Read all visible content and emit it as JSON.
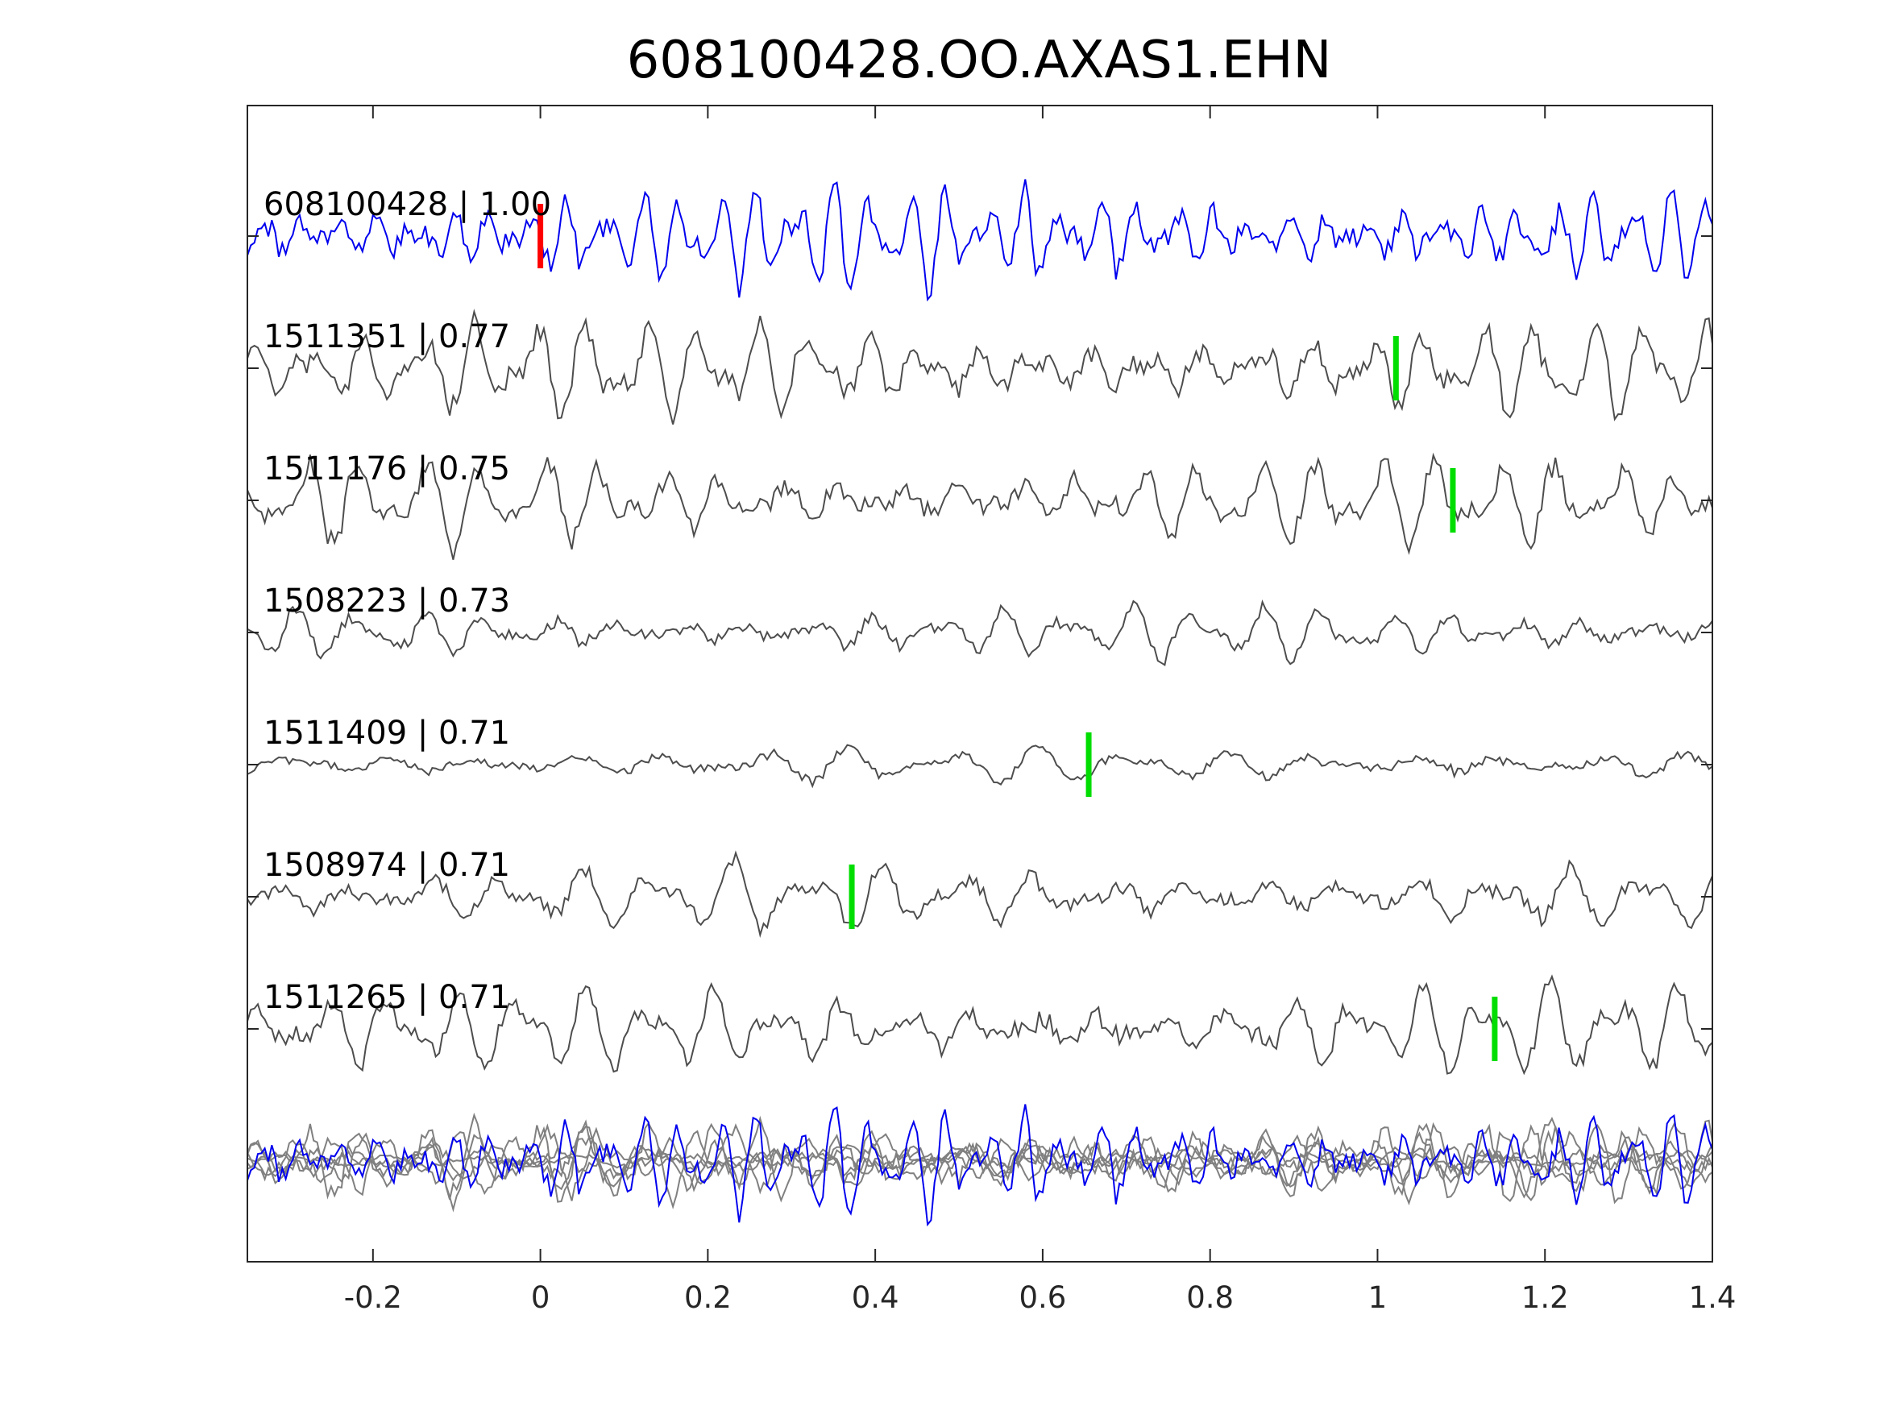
{
  "chart_data": {
    "type": "line",
    "title": "608100428.OO.AXAS1.EHN",
    "xlabel": "",
    "ylabel": "",
    "xlim": [
      -0.35,
      1.4
    ],
    "x_ticks": [
      -0.2,
      0,
      0.2,
      0.4,
      0.6,
      0.8,
      1,
      1.2,
      1.4
    ],
    "x_tick_labels": [
      "-0.2",
      "0",
      "0.2",
      "0.4",
      "0.6",
      "0.8",
      "1",
      "1.2",
      "1.4"
    ],
    "grid": false,
    "colors": {
      "master": "#0000ee",
      "template": "#4d4d4d",
      "stack_template": "#808080",
      "master_pick": "#ff0000",
      "template_pick": "#00dd00",
      "axes": "#262626"
    },
    "series": [
      {
        "name": "608100428",
        "cc_label": "1.00",
        "color": "#0000ee",
        "pick": 0.0,
        "pick_color": "#ff0000",
        "amp": 0.55,
        "f1": 22,
        "f2": 31,
        "seed": 1
      },
      {
        "name": "1511351",
        "cc_label": "0.77",
        "color": "#4d4d4d",
        "pick": 1.022,
        "pick_color": "#00dd00",
        "amp": 0.5,
        "f1": 15,
        "f2": 23,
        "seed": 2
      },
      {
        "name": "1511176",
        "cc_label": "0.75",
        "color": "#4d4d4d",
        "pick": 1.09,
        "pick_color": "#00dd00",
        "amp": 0.45,
        "f1": 14,
        "f2": 21,
        "seed": 3
      },
      {
        "name": "1508223",
        "cc_label": "0.73",
        "color": "#4d4d4d",
        "pick": null,
        "pick_color": "#00dd00",
        "amp": 0.28,
        "f1": 13,
        "f2": 19,
        "seed": 4
      },
      {
        "name": "1511409",
        "cc_label": "0.71",
        "color": "#4d4d4d",
        "pick": 0.655,
        "pick_color": "#00dd00",
        "amp": 0.2,
        "f1": 9,
        "f2": 13,
        "seed": 5
      },
      {
        "name": "1508974",
        "cc_label": "0.71",
        "color": "#4d4d4d",
        "pick": 0.372,
        "pick_color": "#00dd00",
        "amp": 0.35,
        "f1": 11,
        "f2": 17,
        "seed": 6
      },
      {
        "name": "1511265",
        "cc_label": "0.71",
        "color": "#4d4d4d",
        "pick": 1.14,
        "pick_color": "#00dd00",
        "amp": 0.45,
        "f1": 13,
        "f2": 20,
        "seed": 7
      }
    ],
    "stack_row": {
      "overlay_of": "all series",
      "master_color": "#0000ee",
      "template_color": "#808080"
    }
  }
}
